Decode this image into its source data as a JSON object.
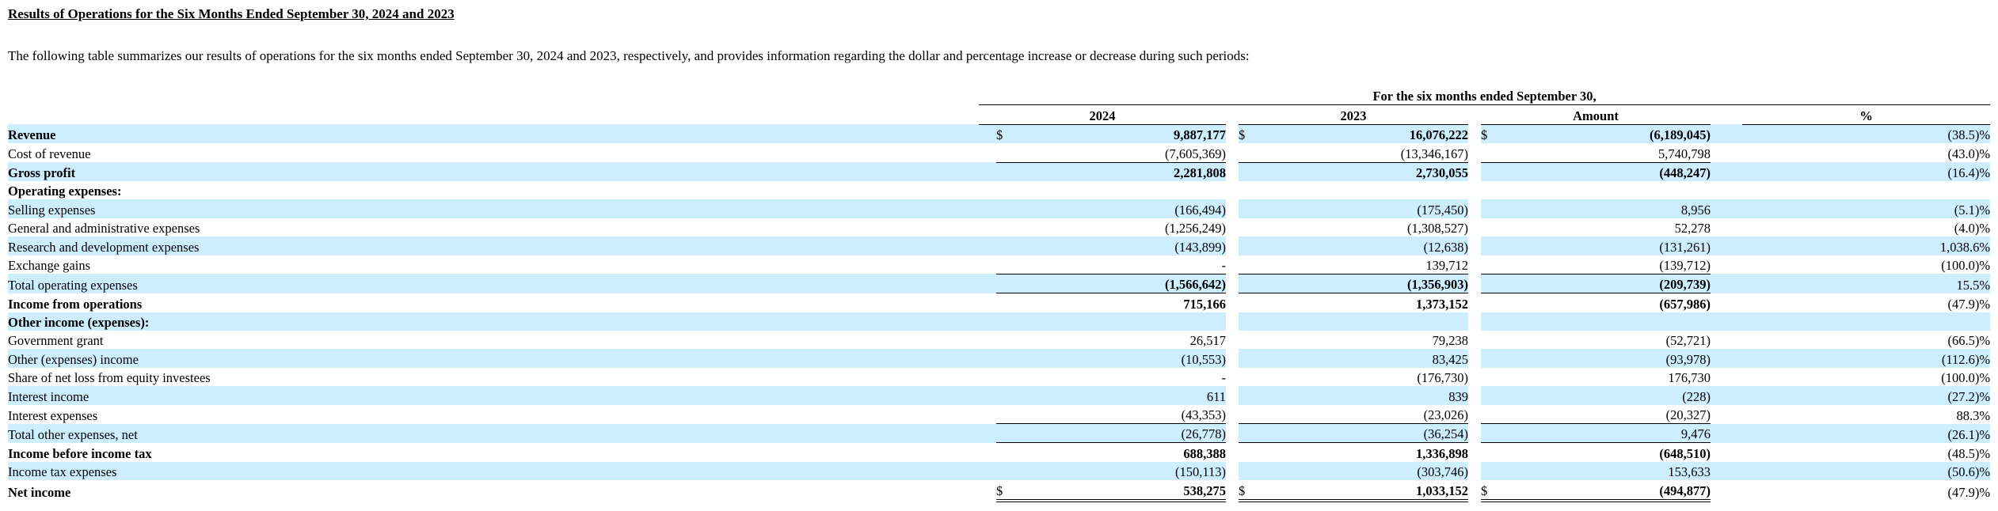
{
  "section": {
    "title": "Results of Operations for the Six Months Ended September 30, 2024 and 2023",
    "intro": "The following table summarizes our results of operations for the six months ended September 30, 2024 and 2023, respectively, and provides information regarding the dollar and percentage increase or decrease during such periods:"
  },
  "table": {
    "span_header": "For the six months ended September 30,",
    "columns": [
      "2024",
      "2023",
      "Amount",
      "%"
    ],
    "currency_symbol": "$",
    "rows": [
      {
        "label": "Revenue",
        "v2024": "9,887,177",
        "v2023": "16,076,222",
        "amount": "(6,189,045)",
        "pct": "(38.5)%"
      },
      {
        "label": "Cost of revenue",
        "v2024": "(7,605,369)",
        "v2023": "(13,346,167)",
        "amount": "5,740,798",
        "pct": "(43.0)%"
      },
      {
        "label": "Gross profit",
        "v2024": "2,281,808",
        "v2023": "2,730,055",
        "amount": "(448,247)",
        "pct": "(16.4)%"
      },
      {
        "label": "Operating expenses:",
        "v2024": "",
        "v2023": "",
        "amount": "",
        "pct": ""
      },
      {
        "label": "Selling expenses",
        "v2024": "(166,494)",
        "v2023": "(175,450)",
        "amount": "8,956",
        "pct": "(5.1)%"
      },
      {
        "label": "General and administrative expenses",
        "v2024": "(1,256,249)",
        "v2023": "(1,308,527)",
        "amount": "52,278",
        "pct": "(4.0)%"
      },
      {
        "label": "Research and development expenses",
        "v2024": "(143,899)",
        "v2023": "(12,638)",
        "amount": "(131,261)",
        "pct": "1,038.6%"
      },
      {
        "label": "Exchange gains",
        "v2024": "-",
        "v2023": "139,712",
        "amount": "(139,712)",
        "pct": "(100.0)%"
      },
      {
        "label": "Total operating expenses",
        "v2024": "(1,566,642)",
        "v2023": "(1,356,903)",
        "amount": "(209,739)",
        "pct": "15.5%"
      },
      {
        "label": "Income from operations",
        "v2024": "715,166",
        "v2023": "1,373,152",
        "amount": "(657,986)",
        "pct": "(47.9)%"
      },
      {
        "label": "Other income (expenses):",
        "v2024": "",
        "v2023": "",
        "amount": "",
        "pct": ""
      },
      {
        "label": "Government grant",
        "v2024": "26,517",
        "v2023": "79,238",
        "amount": "(52,721)",
        "pct": "(66.5)%"
      },
      {
        "label": "Other (expenses) income",
        "v2024": "(10,553)",
        "v2023": "83,425",
        "amount": "(93,978)",
        "pct": "(112.6)%"
      },
      {
        "label": "Share of net loss from equity investees",
        "v2024": "-",
        "v2023": "(176,730)",
        "amount": "176,730",
        "pct": "(100.0)%"
      },
      {
        "label": "Interest income",
        "v2024": "611",
        "v2023": "839",
        "amount": "(228)",
        "pct": "(27.2)%"
      },
      {
        "label": "Interest expenses",
        "v2024": "(43,353)",
        "v2023": "(23,026)",
        "amount": "(20,327)",
        "pct": "88.3%"
      },
      {
        "label": "Total other expenses, net",
        "v2024": "(26,778)",
        "v2023": "(36,254)",
        "amount": "9,476",
        "pct": "(26.1)%"
      },
      {
        "label": "Income before income tax",
        "v2024": "688,388",
        "v2023": "1,336,898",
        "amount": "(648,510)",
        "pct": "(48.5)%"
      },
      {
        "label": "Income tax expenses",
        "v2024": "(150,113)",
        "v2023": "(303,746)",
        "amount": "153,633",
        "pct": "(50.6)%"
      },
      {
        "label": "Net income",
        "v2024": "538,275",
        "v2023": "1,033,152",
        "amount": "(494,877)",
        "pct": "(47.9)%"
      }
    ]
  }
}
